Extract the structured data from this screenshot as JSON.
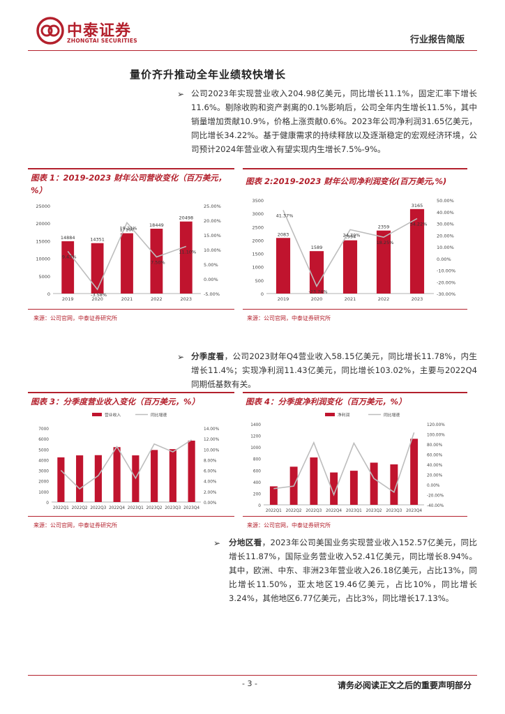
{
  "header": {
    "logo_cn": "中泰证券",
    "logo_en": "ZHONGTAI SECURITIES",
    "report_type": "行业报告简版"
  },
  "section_title": "量价齐升推动全年业绩较快增长",
  "para1": "公司2023年实现营业收入204.98亿美元，同比增长11.1%，固定汇率下增长11.6%。剔除收购和资产剥离的0.1%影响后，公司全年内生增长11.5%，其中销量增加贡献10.9%，价格上涨贡献0.6%。2023年公司净利润31.65亿美元，同比增长34.22%。基于健康需求的持续释放以及逐渐稳定的宏观经济环境，公司预计2024年营业收入有望实现内生增长7.5%-9%。",
  "para2": {
    "lead": "分季度看",
    "text": "，公司2023财年Q4营业收入58.15亿美元，同比增长11.78%，内生增长11.4%；实现净利润11.43亿美元，同比增长103.02%，主要与2022Q4同期低基数有关。"
  },
  "para3": {
    "lead": "分地区看",
    "text": "，2023年公司美国业务实现营业收入152.57亿美元，同比增长11.87%，国际业务营业收入52.41亿美元，同比增长8.94%。其中，欧洲、中东、非洲23年营业收入26.18亿美元，占比13%，同比增长11.50%，亚太地区19.46亿美元，占比10%，同比增长3.24%，其他地区6.77亿美元，占比3%，同比增长17.13%。"
  },
  "source_text": "来源：公司官网，中泰证券研究所",
  "footer": {
    "page": "- 3 -",
    "disclaimer": "请务必阅读正文之后的重要声明部分"
  },
  "colors": {
    "brand_red": "#b3202c",
    "bar_red": "#c0142e",
    "line_gray": "#bdbdbd"
  },
  "chart_data": [
    {
      "id": "fig1",
      "title": "图表 1：2019-2023 财年公司营收变化（百万美元，%）",
      "type": "bar",
      "categories": [
        "2019",
        "2020",
        "2021",
        "2022",
        "2023"
      ],
      "series": [
        {
          "type": "bar",
          "values": [
            14884,
            14351,
            17160,
            18449,
            20498
          ],
          "labels": [
            "14884",
            "14351",
            "17160",
            "18449",
            "20498"
          ]
        },
        {
          "type": "line",
          "axis": "right",
          "values": [
            9.43,
            -3.58,
            19.21,
            7.5,
            11.1
          ],
          "labels": [
            "9.43%",
            "-3.58%",
            "19.21%",
            "7.50%",
            "11.10%"
          ]
        }
      ],
      "left_ticks": [
        "0",
        "5000",
        "10000",
        "15000",
        "20000",
        "25000"
      ],
      "right_ticks": [
        "-5.00%",
        "0.00%",
        "5.00%",
        "10.00%",
        "15.00%",
        "20.00%",
        "25.00%"
      ],
      "ylim": [
        0,
        25000
      ],
      "y2lim": [
        -5,
        25
      ]
    },
    {
      "id": "fig2",
      "title": "图表 2:2019-2023 财年公司净利润变化(百万美元,%)",
      "type": "bar",
      "categories": [
        "2019",
        "2020",
        "2021",
        "2022",
        "2023"
      ],
      "series": [
        {
          "type": "bar",
          "values": [
            2083,
            1589,
            1994,
            2359,
            3165
          ],
          "labels": [
            "2083",
            "1589",
            "1994",
            "2359",
            "3165"
          ]
        },
        {
          "type": "line",
          "axis": "right",
          "values": [
            41.37,
            -23.74,
            24.7,
            18.25,
            34.22
          ],
          "labels": [
            "41.37%",
            "-23.74%",
            "24.70%",
            "18.25%",
            "34.22%"
          ]
        }
      ],
      "left_ticks": [
        "0",
        "500",
        "1000",
        "1500",
        "2000",
        "2500",
        "3000",
        "3500"
      ],
      "right_ticks": [
        "-30.00%",
        "-20.00%",
        "-10.00%",
        "0.00%",
        "10.00%",
        "20.00%",
        "30.00%",
        "40.00%",
        "50.00%"
      ],
      "ylim": [
        0,
        3500
      ],
      "y2lim": [
        -30,
        50
      ]
    },
    {
      "id": "fig3",
      "title": "图表 3：分季度营业收入变化（百万美元，%）",
      "type": "bar",
      "legend": [
        "营业收入",
        "同比增速"
      ],
      "categories": [
        "2022Q1",
        "2022Q2",
        "2022Q3",
        "2022Q4",
        "2023Q1",
        "2023Q2",
        "2023Q3",
        "2023Q4"
      ],
      "series": [
        {
          "type": "bar",
          "values": [
            4230,
            4420,
            4440,
            5200,
            4420,
            4930,
            5010,
            5815
          ]
        },
        {
          "type": "line",
          "axis": "right",
          "values": [
            6.0,
            2.5,
            5.0,
            10.5,
            4.5,
            11.0,
            9.5,
            11.78
          ]
        }
      ],
      "left_ticks": [
        "0",
        "1000",
        "2000",
        "3000",
        "4000",
        "5000",
        "6000",
        "7000"
      ],
      "right_ticks": [
        "0.00%",
        "2.00%",
        "4.00%",
        "6.00%",
        "8.00%",
        "10.00%",
        "12.00%",
        "14.00%"
      ],
      "ylim": [
        0,
        7000
      ],
      "y2lim": [
        0,
        14
      ]
    },
    {
      "id": "fig4",
      "title": "图表 4：分季度净利润变化（百万美元，%）",
      "type": "bar",
      "legend": [
        "净利润",
        "同比增速"
      ],
      "categories": [
        "2022Q1",
        "2022Q2",
        "2022Q3",
        "2022Q4",
        "2023Q1",
        "2023Q2",
        "2023Q3",
        "2023Q4"
      ],
      "series": [
        {
          "type": "bar",
          "values": [
            320,
            660,
            820,
            560,
            590,
            730,
            700,
            1143
          ]
        },
        {
          "type": "line",
          "axis": "right",
          "values": [
            -8,
            -3,
            83,
            -20,
            82,
            12,
            -15,
            103.02
          ]
        }
      ],
      "left_ticks": [
        "0",
        "200",
        "400",
        "600",
        "800",
        "1000",
        "1200",
        "1400"
      ],
      "right_ticks": [
        "-40.00%",
        "-20.00%",
        "0.00%",
        "20.00%",
        "40.00%",
        "60.00%",
        "80.00%",
        "100.00%",
        "120.00%"
      ],
      "ylim": [
        0,
        1400
      ],
      "y2lim": [
        -40,
        120
      ]
    }
  ]
}
